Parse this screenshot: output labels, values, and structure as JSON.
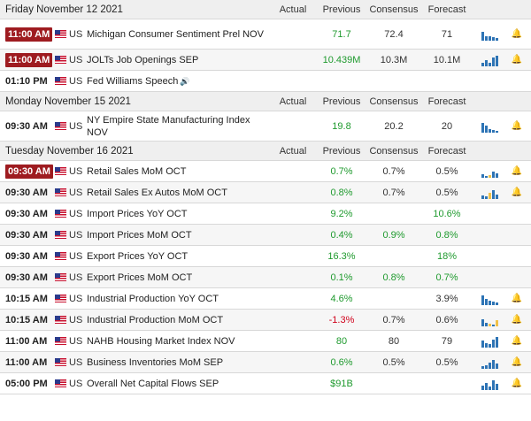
{
  "columns": {
    "actual": "Actual",
    "previous": "Previous",
    "consensus": "Consensus",
    "forecast": "Forecast"
  },
  "colors": {
    "badge": "#9e1b20",
    "bar_blue": "#2e74b5",
    "bar_yellow": "#f0c24a",
    "green": "#1f9a2e",
    "red": "#d0021b"
  },
  "days": [
    {
      "date": "Friday November 12 2021",
      "events": [
        {
          "time": "11:00 AM",
          "badge": true,
          "country": "US",
          "name": "Michigan Consumer Sentiment Prel NOV",
          "actual": "",
          "previous": "71.7",
          "previous_color": "green",
          "consensus": "72.4",
          "forecast": "71",
          "chart": [
            0.8,
            0.4,
            0.35,
            0.3,
            0.2
          ],
          "chart_colors": [
            "b",
            "b",
            "b",
            "b",
            "b"
          ],
          "bell": true
        },
        {
          "time": "11:00 AM",
          "badge": true,
          "country": "US",
          "name": "JOLTs Job Openings SEP",
          "actual": "",
          "previous": "10.439M",
          "previous_color": "green",
          "consensus": "10.3M",
          "forecast": "10.1M",
          "chart": [
            0.3,
            0.5,
            0.3,
            0.8,
            0.95
          ],
          "chart_colors": [
            "b",
            "b",
            "b",
            "b",
            "b"
          ],
          "bell": true
        },
        {
          "time": "01:10 PM",
          "badge": false,
          "country": "US",
          "name": "Fed Williams Speech",
          "speech": true,
          "actual": "",
          "previous": "",
          "previous_color": "dark",
          "consensus": "",
          "forecast": "",
          "chart": [],
          "chart_colors": [],
          "bell": false
        }
      ]
    },
    {
      "date": "Monday November 15 2021",
      "events": [
        {
          "time": "09:30 AM",
          "badge": false,
          "country": "US",
          "name": "NY Empire State Manufacturing Index NOV",
          "actual": "",
          "previous": "19.8",
          "previous_color": "green",
          "consensus": "20.2",
          "forecast": "20",
          "chart": [
            0.85,
            0.6,
            0.3,
            0.2,
            0.15
          ],
          "chart_colors": [
            "b",
            "b",
            "b",
            "b",
            "b"
          ],
          "bell": true
        }
      ]
    },
    {
      "date": "Tuesday November 16 2021",
      "events": [
        {
          "time": "09:30 AM",
          "badge": true,
          "country": "US",
          "name": "Retail Sales MoM OCT",
          "actual": "",
          "previous": "0.7%",
          "previous_color": "green",
          "consensus": "0.7%",
          "forecast": "0.5%",
          "chart": [
            0.3,
            0.15,
            0.2,
            0.5,
            0.35
          ],
          "chart_colors": [
            "b",
            "b",
            "y",
            "b",
            "b"
          ],
          "bell": true
        },
        {
          "time": "09:30 AM",
          "badge": false,
          "country": "US",
          "name": "Retail Sales Ex Autos MoM OCT",
          "actual": "",
          "previous": "0.8%",
          "previous_color": "green",
          "consensus": "0.7%",
          "forecast": "0.5%",
          "chart": [
            0.3,
            0.2,
            0.5,
            0.8,
            0.4
          ],
          "chart_colors": [
            "b",
            "b",
            "y",
            "b",
            "b"
          ],
          "bell": true
        },
        {
          "time": "09:30 AM",
          "badge": false,
          "country": "US",
          "name": "Import Prices YoY OCT",
          "actual": "",
          "previous": "9.2%",
          "previous_color": "green",
          "consensus": "",
          "forecast": "10.6%",
          "forecast_color": "green",
          "chart": [],
          "chart_colors": [],
          "bell": false
        },
        {
          "time": "09:30 AM",
          "badge": false,
          "country": "US",
          "name": "Import Prices MoM OCT",
          "actual": "",
          "previous": "0.4%",
          "previous_color": "green",
          "consensus": "0.9%",
          "consensus_color": "green",
          "forecast": "0.8%",
          "forecast_color": "green",
          "chart": [],
          "chart_colors": [],
          "bell": false
        },
        {
          "time": "09:30 AM",
          "badge": false,
          "country": "US",
          "name": "Export Prices YoY OCT",
          "actual": "",
          "previous": "16.3%",
          "previous_color": "green",
          "consensus": "",
          "forecast": "18%",
          "forecast_color": "green",
          "chart": [],
          "chart_colors": [],
          "bell": false
        },
        {
          "time": "09:30 AM",
          "badge": false,
          "country": "US",
          "name": "Export Prices MoM OCT",
          "actual": "",
          "previous": "0.1%",
          "previous_color": "green",
          "consensus": "0.8%",
          "consensus_color": "green",
          "forecast": "0.7%",
          "forecast_color": "green",
          "chart": [],
          "chart_colors": [],
          "bell": false
        },
        {
          "time": "10:15 AM",
          "badge": false,
          "country": "US",
          "name": "Industrial Production YoY OCT",
          "actual": "",
          "previous": "4.6%",
          "previous_color": "green",
          "consensus": "",
          "forecast": "3.9%",
          "chart": [
            0.85,
            0.5,
            0.35,
            0.3,
            0.25
          ],
          "chart_colors": [
            "b",
            "b",
            "b",
            "b",
            "b"
          ],
          "bell": true
        },
        {
          "time": "10:15 AM",
          "badge": false,
          "country": "US",
          "name": "Industrial Production MoM OCT",
          "actual": "",
          "previous": "-1.3%",
          "previous_color": "red",
          "consensus": "0.7%",
          "forecast": "0.6%",
          "chart": [
            0.6,
            0.3,
            0.2,
            0.15,
            0.5
          ],
          "chart_colors": [
            "b",
            "b",
            "y",
            "b",
            "y"
          ],
          "bell": true
        },
        {
          "time": "11:00 AM",
          "badge": false,
          "country": "US",
          "name": "NAHB Housing Market Index NOV",
          "actual": "",
          "previous": "80",
          "previous_color": "green",
          "consensus": "80",
          "forecast": "79",
          "chart": [
            0.6,
            0.4,
            0.3,
            0.7,
            0.9
          ],
          "chart_colors": [
            "b",
            "b",
            "b",
            "b",
            "b"
          ],
          "bell": true
        },
        {
          "time": "11:00 AM",
          "badge": false,
          "country": "US",
          "name": "Business Inventories MoM SEP",
          "actual": "",
          "previous": "0.6%",
          "previous_color": "green",
          "consensus": "0.5%",
          "forecast": "0.5%",
          "chart": [
            0.2,
            0.3,
            0.5,
            0.8,
            0.45
          ],
          "chart_colors": [
            "b",
            "b",
            "b",
            "b",
            "b"
          ],
          "bell": true
        },
        {
          "time": "05:00 PM",
          "badge": false,
          "country": "US",
          "name": "Overall Net Capital Flows SEP",
          "actual": "",
          "previous": "$91B",
          "previous_color": "green",
          "consensus": "",
          "forecast": "",
          "chart": [
            0.4,
            0.6,
            0.3,
            0.85,
            0.5
          ],
          "chart_colors": [
            "b",
            "b",
            "b",
            "b",
            "b"
          ],
          "bell": true
        }
      ]
    }
  ]
}
